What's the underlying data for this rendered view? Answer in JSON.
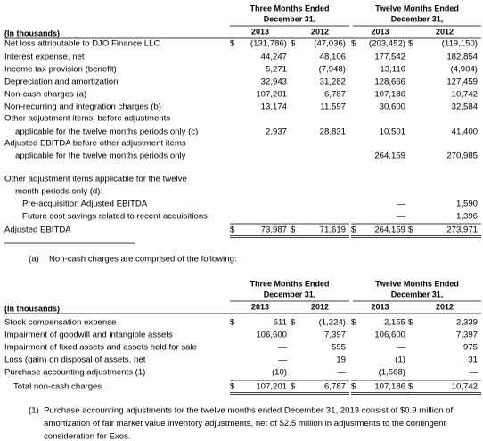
{
  "table1": {
    "unit_label": "(In thousands)",
    "groups": [
      {
        "line1": "Three Months Ended",
        "line2": "December 31,"
      },
      {
        "line1": "Twelve Months Ended",
        "line2": "December 31,"
      }
    ],
    "years": [
      "2013",
      "2012",
      "2013",
      "2012"
    ],
    "rows": [
      {
        "label": [
          "Net loss attributable to DJO Finance LLC"
        ],
        "signs": [
          "$",
          "$",
          "$",
          "$"
        ],
        "cells": [
          "(131,786)",
          "(47,036)",
          "(203,452)",
          "(119,150)"
        ]
      },
      {
        "label": [
          "Interest expense, net"
        ],
        "cells": [
          "44,247",
          "48,106",
          "177,542",
          "182,854"
        ]
      },
      {
        "label": [
          "Income tax provision (benefit)"
        ],
        "cells": [
          "5,271",
          "(7,948)",
          "13,116",
          "(4,904)"
        ]
      },
      {
        "label": [
          "Depreciation and amortization"
        ],
        "cells": [
          "32,943",
          "31,282",
          "128,666",
          "127,459"
        ]
      },
      {
        "label": [
          "Non-cash charges (a)"
        ],
        "cells": [
          "107,201",
          "6,787",
          "107,186",
          "10,742"
        ]
      },
      {
        "label": [
          "Non-recurring and integration charges (b)"
        ],
        "cells": [
          "13,174",
          "11,597",
          "30,600",
          "32,584"
        ]
      },
      {
        "label": [
          "Other adjustment items, before adjustments",
          "applicable for the twelve months periods only (c)"
        ],
        "cells": [
          "2,937",
          "28,831",
          "10,501",
          "41,400"
        ]
      },
      {
        "label": [
          "Adjusted EBITDA before other adjustment items",
          "applicable for the twelve months periods only"
        ],
        "cells": [
          null,
          null,
          "264,159",
          "270,985"
        ]
      },
      {
        "label": [
          "Other adjustment items applicable for the twelve",
          "month periods only (d):"
        ]
      },
      {
        "label": [
          "Pre-acquisition Adjusted EBITDA"
        ],
        "cells": [
          null,
          null,
          "—",
          "1,590"
        ]
      },
      {
        "label": [
          "Future cost savings related to recent acquisitions"
        ],
        "cells": [
          null,
          null,
          "—",
          "1,396"
        ]
      },
      {
        "label": [
          "Adjusted EBITDA"
        ],
        "signs": [
          "$",
          "$",
          "$",
          "$"
        ],
        "cells": [
          "73,987",
          "71,619",
          "264,159",
          "273,971"
        ],
        "total": true
      }
    ]
  },
  "note_a": {
    "marker": "(a)",
    "text": "Non-cash charges are comprised of the following:"
  },
  "table2": {
    "unit_label": "(In thousands)",
    "groups": [
      {
        "line1": "Three Months Ended",
        "line2": "December 31,"
      },
      {
        "line1": "Twelve Months Ended",
        "line2": "December 31,"
      }
    ],
    "years": [
      "2013",
      "2012",
      "2013",
      "2012"
    ],
    "rows": [
      {
        "label": [
          "Stock compensation expense"
        ],
        "signs": [
          "$",
          "$",
          "$",
          "$"
        ],
        "cells": [
          "611",
          "(1,224)",
          "2,155",
          "2,339"
        ]
      },
      {
        "label": [
          "Impairment of goodwill and intangible assets"
        ],
        "cells": [
          "106,600",
          "7,397",
          "106,600",
          "7,397"
        ]
      },
      {
        "label": [
          "Impairment of fixed assets and assets held for sale"
        ],
        "cells": [
          "—",
          "595",
          "—",
          "975"
        ]
      },
      {
        "label": [
          "Loss (gain) on disposal of assets, net"
        ],
        "cells": [
          "—",
          "19",
          "(1)",
          "31"
        ]
      },
      {
        "label": [
          "Purchase accounting adjustments (1)"
        ],
        "cells": [
          "(10)",
          "—",
          "(1,568)",
          "—"
        ]
      },
      {
        "label": [
          "Total non-cash charges"
        ],
        "signs": [
          "$",
          "$",
          "$",
          "$"
        ],
        "cells": [
          "107,201",
          "6,787",
          "107,186",
          "10,742"
        ],
        "total": true
      }
    ]
  },
  "footnote": {
    "marker": "(1)",
    "lines": [
      "Purchase accounting adjustments for the twelve months ended December 31, 2013 consist of $0.9 million of",
      "amortization of fair market value inventory adjustments, net of $2.5 million in adjustments to the contingent",
      "consideration for Exos."
    ]
  }
}
